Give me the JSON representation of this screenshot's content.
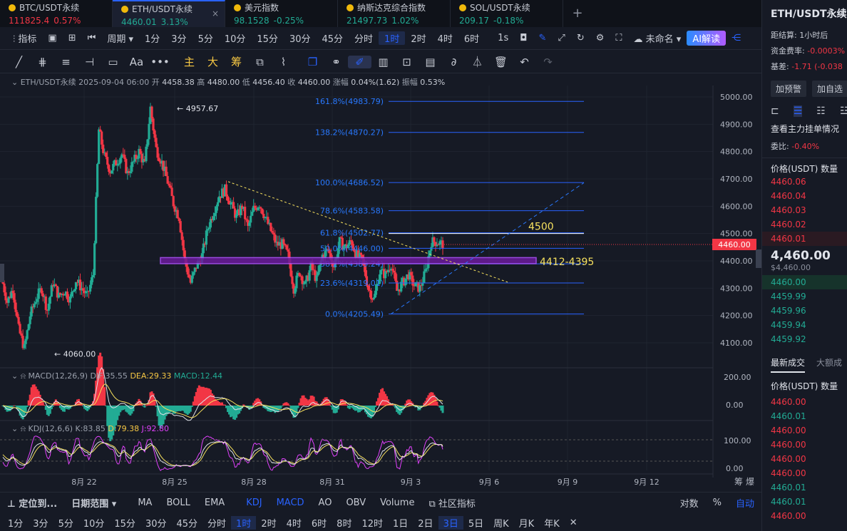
{
  "tabs": [
    {
      "name": "BTC/USDT永续",
      "price": "111825.4",
      "change": "0.57%",
      "color": "red"
    },
    {
      "name": "ETH/USDT永续",
      "price": "4460.01",
      "change": "3.13%",
      "color": "green"
    },
    {
      "name": "美元指数",
      "price": "98.1528",
      "change": "-0.25%",
      "color": "green"
    },
    {
      "name": "纳斯达克综合指数",
      "price": "21497.73",
      "change": "1.02%",
      "color": "green"
    },
    {
      "name": "SOL/USDT永续",
      "price": "209.17",
      "change": "-0.18%",
      "color": "green"
    }
  ],
  "toolbar": {
    "indicators": "指标",
    "period": "周期",
    "intervals": [
      "1分",
      "3分",
      "5分",
      "10分",
      "15分",
      "30分",
      "45分",
      "分时",
      "1时",
      "2时",
      "4时",
      "6时"
    ],
    "selected": "1时",
    "one_s": "1s",
    "unnamed": "未命名",
    "ai": "AI解读"
  },
  "drawbar": {
    "zhu": "主",
    "da": "大",
    "chou": "筹",
    "aa": "Aa",
    "more": "•••"
  },
  "legend": {
    "symbol": "ETH/USDT永续",
    "datetime": "2025-09-04 06:00",
    "open_l": "开",
    "open": "4458.38",
    "high_l": "高",
    "high": "4480.00",
    "low_l": "低",
    "low": "4456.40",
    "close_l": "收",
    "close": "4460.00",
    "chg_l": "涨幅",
    "chg": "0.04%(1.62)",
    "amp_l": "振幅",
    "amp": "0.53%"
  },
  "chart_data": {
    "type": "candlestick",
    "symbol": "ETH/USDT永续",
    "interval": "1时",
    "ylim": [
      4050,
      5020
    ],
    "price_ticks": [
      "5000.00",
      "4900.00",
      "4800.00",
      "4700.00",
      "4600.00",
      "4500.00",
      "4400.00",
      "4300.00",
      "4200.00",
      "4100.00"
    ],
    "x_ticks": [
      "8月 22",
      "8月 25",
      "8月 28",
      "8月 31",
      "9月 3",
      "9月 6",
      "9月 9",
      "9月 12"
    ],
    "last_price": "4460.00",
    "annotations": [
      {
        "text": "4957.67",
        "price": 4957.67
      },
      {
        "text": "4060.00",
        "price": 4060.0
      }
    ],
    "fib": [
      {
        "label": "161.8%(4983.79)",
        "price": 4983.79
      },
      {
        "label": "138.2%(4870.27)",
        "price": 4870.27
      },
      {
        "label": "100.0%(4686.52)",
        "price": 4686.52
      },
      {
        "label": "78.6%(4583.58)",
        "price": 4583.58
      },
      {
        "label": "61.8%(4502.77)",
        "price": 4502.77
      },
      {
        "label": "50.0%(4446.00)",
        "price": 4446.0
      },
      {
        "label": "38.2%(4389.24)",
        "price": 4389.24
      },
      {
        "label": "23.6%(4319.01)",
        "price": 4319.01
      },
      {
        "label": "0.0%(4205.49)",
        "price": 4205.49
      }
    ],
    "zone": {
      "label": "4412-4395",
      "top": 4412,
      "bottom": 4395
    },
    "level": {
      "label": "4500",
      "price": 4500
    },
    "path": [
      4340,
      4250,
      4300,
      4150,
      4080,
      4200,
      4260,
      4300,
      4220,
      4320,
      4270,
      4290,
      4260,
      4330,
      4300,
      4270,
      4350,
      4880,
      4780,
      4730,
      4760,
      4790,
      4720,
      4760,
      4800,
      4750,
      4960,
      4810,
      4760,
      4690,
      4610,
      4560,
      4400,
      4320,
      4380,
      4420,
      4520,
      4580,
      4640,
      4660,
      4610,
      4560,
      4600,
      4520,
      4590,
      4610,
      4560,
      4510,
      4460,
      4460,
      4420,
      4300,
      4360,
      4310,
      4380,
      4330,
      4420,
      4440,
      4380,
      4470,
      4450,
      4470,
      4420,
      4400,
      4300,
      4260,
      4360,
      4350,
      4390,
      4290,
      4320,
      4350,
      4310,
      4300,
      4360,
      4470,
      4470,
      4460
    ],
    "macd": {
      "label": "MACD(12,26,9)",
      "dif": "DIF:35.55",
      "dea": "DEA:29.33",
      "macd": "MACD:12.44",
      "ticks": [
        "200.00",
        "0.00"
      ]
    },
    "kdj": {
      "label": "KDJ(12,6,6)",
      "k": "K:83.85",
      "d": "D:79.38",
      "j": "J:92.80",
      "ticks": [
        "100.00",
        "0.00"
      ]
    }
  },
  "bottom": {
    "locate": "定位到...",
    "range": "日期范围",
    "inds": [
      "MA",
      "BOLL",
      "EMA"
    ],
    "inds2": [
      "KDJ",
      "MACD",
      "AO",
      "OBV",
      "Volume"
    ],
    "community": "社区指标",
    "log": "对数",
    "pct": "%",
    "auto": "自动",
    "ranges": [
      "1分",
      "3分",
      "5分",
      "10分",
      "15分",
      "30分",
      "45分",
      "分时",
      "1时",
      "2时",
      "4时",
      "6时",
      "8时",
      "12时",
      "1日",
      "2日",
      "3日",
      "5日",
      "周K",
      "月K",
      "年K"
    ],
    "sel": "3日"
  },
  "panel": {
    "title": "ETH/USDT永续",
    "settle_l": "距结算:",
    "settle": "1小时后",
    "funding_l": "资金费率:",
    "funding": "-0.0003%",
    "basis_l": "基差:",
    "basis": "-1.71 (-0.038",
    "alert": "加预警",
    "fav": "加自选",
    "depth_title": "查看主力挂单情况",
    "wei_l": "委比:",
    "wei": "-0.40%",
    "price_h": "价格(USDT)",
    "qty_h": "数量",
    "asks": [
      "4460.06",
      "4460.04",
      "4460.03",
      "4460.02",
      "4460.01"
    ],
    "mid": "4,460.00",
    "mid_sub": "$4,460.00",
    "bids": [
      "4460.00",
      "4459.99",
      "4459.96",
      "4459.94",
      "4459.92"
    ],
    "trades_tab": "最新成交",
    "big_tab": "大额成",
    "trades": [
      {
        "p": "4460.00",
        "c": "red"
      },
      {
        "p": "4460.01",
        "c": "green"
      },
      {
        "p": "4460.00",
        "c": "red"
      },
      {
        "p": "4460.00",
        "c": "red"
      },
      {
        "p": "4460.00",
        "c": "red"
      },
      {
        "p": "4460.00",
        "c": "red"
      },
      {
        "p": "4460.01",
        "c": "green"
      },
      {
        "p": "4460.01",
        "c": "green"
      },
      {
        "p": "4460.00",
        "c": "red"
      }
    ]
  }
}
